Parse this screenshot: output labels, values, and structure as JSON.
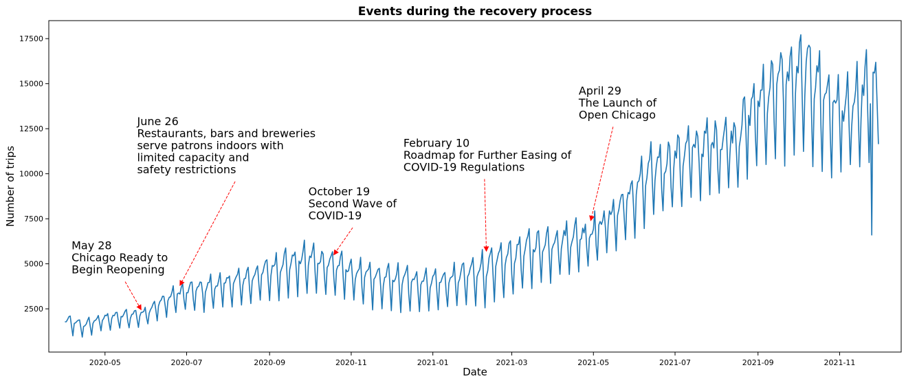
{
  "chart_data": {
    "type": "line",
    "title": "Events during the recovery process",
    "xlabel": "Date",
    "ylabel": "Number of trips",
    "x_start": "2020-04-01",
    "x_end": "2021-11-30",
    "xlim": [
      "2020-03-20",
      "2021-12-17"
    ],
    "ylim": [
      100,
      18500
    ],
    "y_ticks": [
      2500,
      5000,
      7500,
      10000,
      12500,
      15000,
      17500
    ],
    "x_ticks": [
      "2020-05",
      "2020-07",
      "2020-09",
      "2020-11",
      "2021-01",
      "2021-03",
      "2021-05",
      "2021-07",
      "2021-09",
      "2021-11"
    ],
    "x_tick_dates": [
      "2020-05-01",
      "2020-07-01",
      "2020-09-01",
      "2020-11-01",
      "2021-01-01",
      "2021-03-01",
      "2021-05-01",
      "2021-07-01",
      "2021-09-01",
      "2021-11-01"
    ],
    "grid": false,
    "line_color": "#1f77b4",
    "annotation_color": "#ff0000",
    "series": [
      {
        "name": "",
        "weekly_peaks": [
          {
            "date": "2020-04-01",
            "peak": 2150,
            "trough": 1100
          },
          {
            "date": "2020-04-15",
            "peak": 1850,
            "trough": 950
          },
          {
            "date": "2020-05-01",
            "peak": 2300,
            "trough": 1300
          },
          {
            "date": "2020-05-28",
            "peak": 2500,
            "trough": 1500
          },
          {
            "date": "2020-06-15",
            "peak": 3400,
            "trough": 2000
          },
          {
            "date": "2020-06-26",
            "peak": 3800,
            "trough": 2400
          },
          {
            "date": "2020-07-15",
            "peak": 4200,
            "trough": 2400
          },
          {
            "date": "2020-08-15",
            "peak": 4800,
            "trough": 2700
          },
          {
            "date": "2020-09-10",
            "peak": 5700,
            "trough": 3100
          },
          {
            "date": "2020-10-01",
            "peak": 6100,
            "trough": 3300
          },
          {
            "date": "2020-10-19",
            "peak": 5600,
            "trough": 3300
          },
          {
            "date": "2020-11-15",
            "peak": 5000,
            "trough": 2500
          },
          {
            "date": "2020-12-15",
            "peak": 4800,
            "trough": 2300
          },
          {
            "date": "2021-01-10",
            "peak": 4600,
            "trough": 2600
          },
          {
            "date": "2021-02-10",
            "peak": 5700,
            "trough": 2600
          },
          {
            "date": "2021-03-15",
            "peak": 6800,
            "trough": 3700
          },
          {
            "date": "2021-04-15",
            "peak": 7300,
            "trough": 4500
          },
          {
            "date": "2021-04-29",
            "peak": 7400,
            "trough": 5000
          },
          {
            "date": "2021-05-20",
            "peak": 9000,
            "trough": 5800
          },
          {
            "date": "2021-06-15",
            "peak": 11500,
            "trough": 7400
          },
          {
            "date": "2021-07-15",
            "peak": 12500,
            "trough": 8600
          },
          {
            "date": "2021-08-15",
            "peak": 13200,
            "trough": 9300
          },
          {
            "date": "2021-09-01",
            "peak": 15500,
            "trough": 10200
          },
          {
            "date": "2021-09-15",
            "peak": 16800,
            "trough": 10800
          },
          {
            "date": "2021-10-08",
            "peak": 17600,
            "trough": 11000
          },
          {
            "date": "2021-10-25",
            "peak": 15500,
            "trough": 10000
          },
          {
            "date": "2021-11-10",
            "peak": 14800,
            "trough": 10200
          },
          {
            "date": "2021-11-20",
            "peak": 16500,
            "trough": 9800
          },
          {
            "date": "2021-11-30",
            "peak": 15700,
            "trough": 12000
          }
        ],
        "dip": {
          "date": "2021-11-25",
          "value": 6600
        }
      }
    ],
    "annotations": [
      {
        "lines": [
          "May 28",
          "Chicago Ready to",
          "Begin Reopening"
        ],
        "point": {
          "date": "2020-05-28",
          "value": 2450
        },
        "text_at": {
          "date": "2020-04-06",
          "value": 5800
        }
      },
      {
        "lines": [
          "June 26",
          "Restaurants, bars and breweries",
          "serve patrons indoors with",
          "limited capacity and",
          "safety restrictions"
        ],
        "point": {
          "date": "2020-06-26",
          "value": 3800
        },
        "text_at": {
          "date": "2020-05-25",
          "value": 12700
        }
      },
      {
        "lines": [
          "October 19",
          "Second Wave of",
          "COVID-19"
        ],
        "point": {
          "date": "2020-10-19",
          "value": 5500
        },
        "text_at": {
          "date": "2020-09-30",
          "value": 8800
        }
      },
      {
        "lines": [
          "February 10",
          "Roadmap for Further Easing of",
          "COVID-19 Regulations"
        ],
        "point": {
          "date": "2021-02-10",
          "value": 5700
        },
        "text_at": {
          "date": "2020-12-10",
          "value": 11500
        }
      },
      {
        "lines": [
          "April 29",
          "The Launch of",
          "Open Chicago"
        ],
        "point": {
          "date": "2021-04-29",
          "value": 7400
        },
        "text_at": {
          "date": "2021-04-20",
          "value": 14400
        }
      }
    ]
  }
}
